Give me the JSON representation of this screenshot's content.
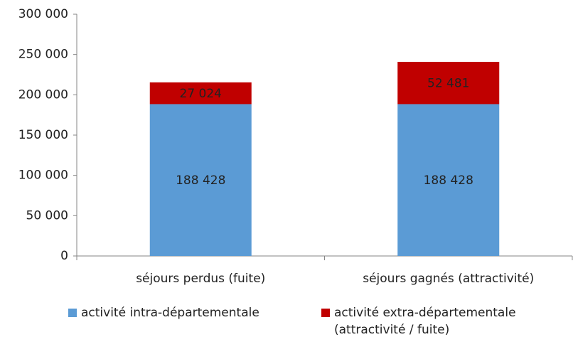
{
  "chart_data": {
    "type": "stacked_bar",
    "categories": [
      "séjours perdus (fuite)",
      "séjours gagnés (attractivité)"
    ],
    "series": [
      {
        "name": "activité intra-départementale",
        "color": "#5b9bd5",
        "values": [
          188428,
          188428
        ],
        "value_labels": [
          "188 428",
          "188 428"
        ]
      },
      {
        "name": "activité extra-départementale (attractivité / fuite)",
        "color": "#c00000",
        "values": [
          27024,
          52481
        ],
        "value_labels": [
          "27 024",
          "52 481"
        ]
      }
    ],
    "ylim": [
      0,
      300000
    ],
    "yticks": [
      0,
      {
        "value": 50000,
        "label": "50 000"
      },
      {
        "value": 100000,
        "label": "100 000"
      },
      {
        "value": 150000,
        "label": "150 000"
      },
      {
        "value": 200000,
        "label": "200 000"
      },
      {
        "value": 250000,
        "label": "250 000"
      },
      {
        "value": 300000,
        "label": "300 000"
      }
    ],
    "grid": false
  }
}
